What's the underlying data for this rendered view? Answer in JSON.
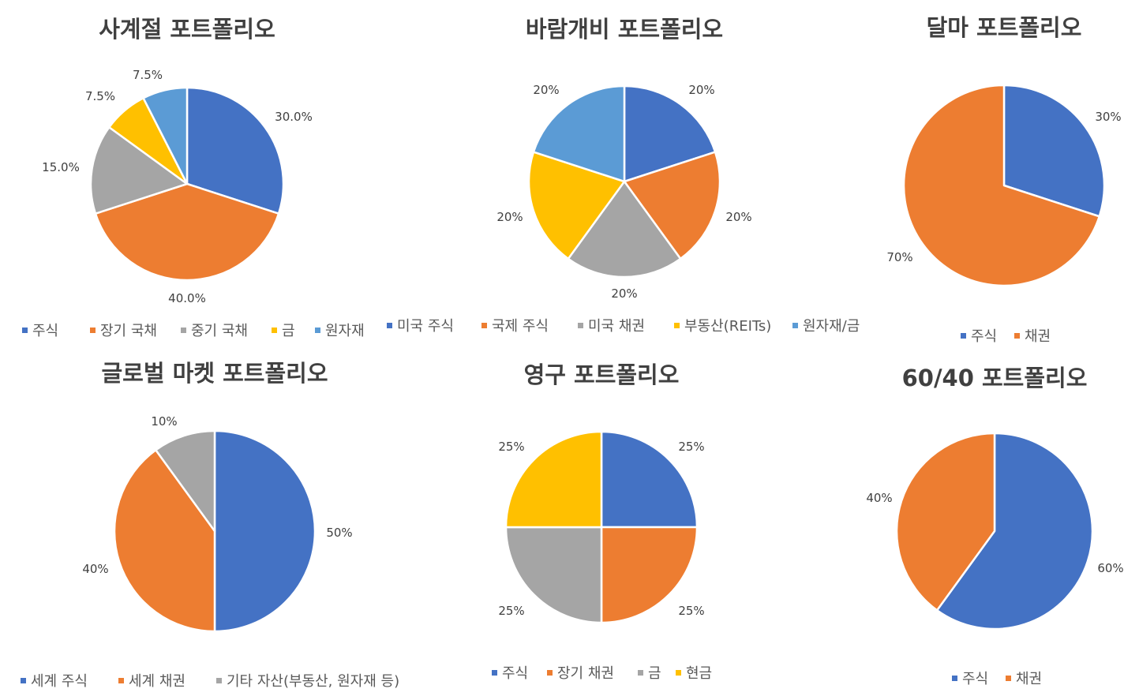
{
  "colors": {
    "blue": "#4472C4",
    "orange": "#ED7D31",
    "gray": "#A5A5A5",
    "yellow": "#FFC000",
    "lightblue": "#5B9BD5",
    "text": "#404040",
    "legend_text": "#595959"
  },
  "chart_data": [
    {
      "type": "pie",
      "title": "사계절 포트폴리오",
      "categories": [
        "주식",
        "장기 국채",
        "중기 국채",
        "금",
        "원자재"
      ],
      "values": [
        30,
        40,
        15,
        7.5,
        7.5
      ],
      "labels": [
        "30.0%",
        "40.0%",
        "15.0%",
        "7.5%",
        "7.5%"
      ],
      "colors": [
        "#4472C4",
        "#ED7D31",
        "#A5A5A5",
        "#FFC000",
        "#5B9BD5"
      ],
      "legend": "bottom"
    },
    {
      "type": "pie",
      "title": "바람개비 포트폴리오",
      "categories": [
        "미국 주식",
        "국제 주식",
        "미국 채권",
        "부동산(REITs)",
        "원자재/금"
      ],
      "values": [
        20,
        20,
        20,
        20,
        20
      ],
      "labels": [
        "20%",
        "20%",
        "20%",
        "20%",
        "20%"
      ],
      "colors": [
        "#4472C4",
        "#ED7D31",
        "#A5A5A5",
        "#FFC000",
        "#5B9BD5"
      ],
      "legend": "bottom"
    },
    {
      "type": "pie",
      "title": "달마 포트폴리오",
      "categories": [
        "주식",
        "채권"
      ],
      "values": [
        30,
        70
      ],
      "labels": [
        "30%",
        "70%"
      ],
      "colors": [
        "#4472C4",
        "#ED7D31"
      ],
      "legend": "bottom"
    },
    {
      "type": "pie",
      "title": "글로벌 마켓 포트폴리오",
      "categories": [
        "세계 주식",
        "세계 채권",
        "기타 자산(부동산, 원자재 등)"
      ],
      "values": [
        50,
        40,
        10
      ],
      "labels": [
        "50%",
        "40%",
        "10%"
      ],
      "colors": [
        "#4472C4",
        "#ED7D31",
        "#A5A5A5"
      ],
      "legend": "bottom"
    },
    {
      "type": "pie",
      "title": "영구 포트폴리오",
      "categories": [
        "주식",
        "장기 채권",
        "금",
        "현금"
      ],
      "values": [
        25,
        25,
        25,
        25
      ],
      "labels": [
        "25%",
        "25%",
        "25%",
        "25%"
      ],
      "colors": [
        "#4472C4",
        "#ED7D31",
        "#A5A5A5",
        "#FFC000"
      ],
      "legend": "bottom"
    },
    {
      "type": "pie",
      "title": "60/40 포트폴리오",
      "categories": [
        "주식",
        "채권"
      ],
      "values": [
        60,
        40
      ],
      "labels": [
        "60%",
        "40%"
      ],
      "colors": [
        "#4472C4",
        "#ED7D31"
      ],
      "legend": "bottom"
    }
  ]
}
